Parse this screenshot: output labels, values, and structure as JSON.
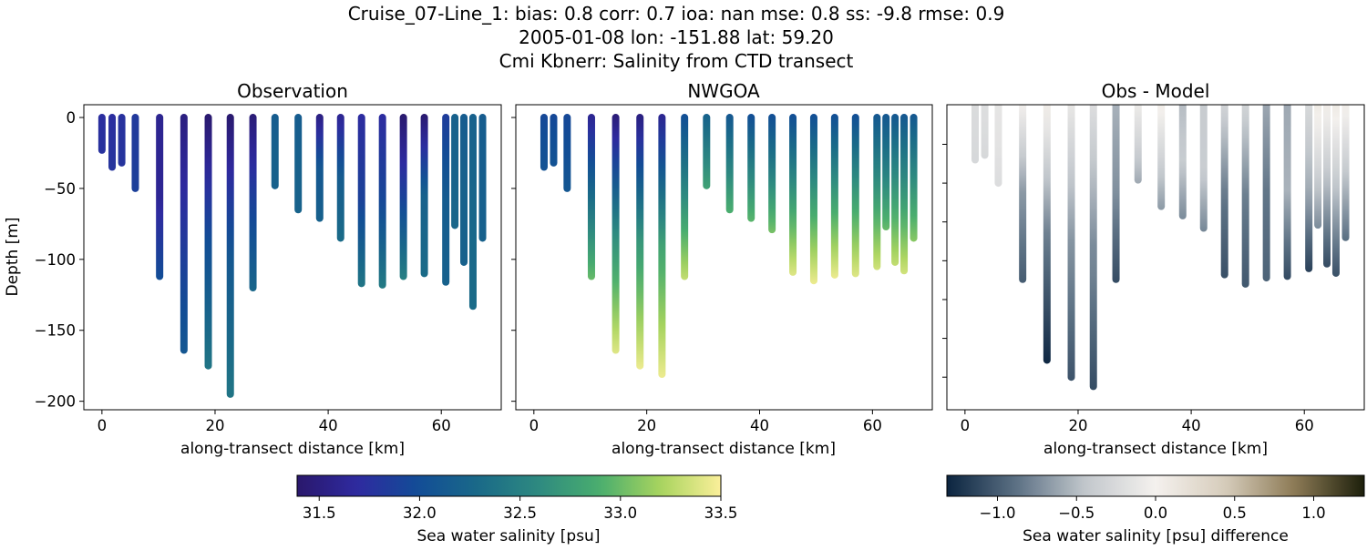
{
  "title_lines": [
    "Cruise_07-Line_1: bias: 0.8  corr: 0.7  ioa: nan  mse: 0.8  ss: -9.8  rmse: 0.9",
    "2005-01-08 lon: -151.88 lat: 59.20",
    "Cmi Kbnerr: Salinity from CTD transect"
  ],
  "chart_data": [
    {
      "type": "scatter",
      "title": "Observation",
      "xlabel": "along-transect distance [km]",
      "ylabel": "Depth [m]",
      "xlim": [
        -3.2,
        70.6
      ],
      "ylim": [
        -206,
        9
      ],
      "xticks": [
        "0",
        "20",
        "40",
        "60"
      ],
      "yticks": [
        "0",
        "−50",
        "−100",
        "−150",
        "−200"
      ],
      "colormap": "haline",
      "profiles": [
        {
          "distance_km": 0.0,
          "max_depth_m": 23,
          "salinity": [
            31.72,
            31.74,
            31.76
          ]
        },
        {
          "distance_km": 1.8,
          "max_depth_m": 35,
          "salinity": [
            31.72,
            31.75,
            31.78
          ]
        },
        {
          "distance_km": 3.5,
          "max_depth_m": 32,
          "salinity": [
            31.75,
            31.77,
            31.78
          ]
        },
        {
          "distance_km": 5.9,
          "max_depth_m": 50,
          "salinity": [
            31.82,
            31.85,
            31.88
          ]
        },
        {
          "distance_km": 10.2,
          "max_depth_m": 112,
          "salinity": [
            31.6,
            31.62,
            32.0
          ]
        },
        {
          "distance_km": 14.5,
          "max_depth_m": 164,
          "salinity": [
            31.5,
            31.8,
            32.1
          ]
        },
        {
          "distance_km": 18.8,
          "max_depth_m": 175,
          "salinity": [
            31.4,
            32.0,
            32.4
          ]
        },
        {
          "distance_km": 22.7,
          "max_depth_m": 195,
          "salinity": [
            31.4,
            32.1,
            32.4
          ]
        },
        {
          "distance_km": 26.7,
          "max_depth_m": 120,
          "salinity": [
            31.45,
            31.9,
            32.25
          ]
        },
        {
          "distance_km": 30.6,
          "max_depth_m": 48,
          "salinity": [
            32.15,
            32.2,
            32.2
          ]
        },
        {
          "distance_km": 34.7,
          "max_depth_m": 65,
          "salinity": [
            32.15,
            32.2,
            32.22
          ]
        },
        {
          "distance_km": 38.5,
          "max_depth_m": 71,
          "salinity": [
            31.5,
            32.1,
            32.2
          ]
        },
        {
          "distance_km": 42.2,
          "max_depth_m": 85,
          "salinity": [
            31.6,
            32.15,
            32.3
          ]
        },
        {
          "distance_km": 45.9,
          "max_depth_m": 117,
          "salinity": [
            31.7,
            31.9,
            32.4
          ]
        },
        {
          "distance_km": 49.6,
          "max_depth_m": 118,
          "salinity": [
            31.7,
            31.95,
            32.45
          ]
        },
        {
          "distance_km": 53.3,
          "max_depth_m": 112,
          "salinity": [
            31.4,
            31.9,
            32.5
          ]
        },
        {
          "distance_km": 57.0,
          "max_depth_m": 110,
          "salinity": [
            31.4,
            32.2,
            32.3
          ]
        },
        {
          "distance_km": 60.8,
          "max_depth_m": 116,
          "salinity": [
            31.85,
            32.15,
            32.2
          ]
        },
        {
          "distance_km": 62.4,
          "max_depth_m": 76,
          "salinity": [
            32.2,
            32.22,
            32.25
          ]
        },
        {
          "distance_km": 64.0,
          "max_depth_m": 102,
          "salinity": [
            32.15,
            32.2,
            32.2
          ]
        },
        {
          "distance_km": 65.6,
          "max_depth_m": 133,
          "salinity": [
            32.2,
            32.25,
            32.3
          ]
        },
        {
          "distance_km": 67.3,
          "max_depth_m": 85,
          "salinity": [
            32.15,
            32.18,
            32.2
          ]
        }
      ]
    },
    {
      "type": "scatter",
      "title": "NWGOA",
      "xlabel": "along-transect distance [km]",
      "xlim": [
        -3.2,
        70.6
      ],
      "ylim": [
        -206,
        9
      ],
      "xticks": [
        "0",
        "20",
        "40",
        "60"
      ],
      "colormap": "haline",
      "profiles": [
        {
          "distance_km": 1.8,
          "max_depth_m": 35,
          "salinity": [
            31.95,
            32.0,
            32.05
          ]
        },
        {
          "distance_km": 3.5,
          "max_depth_m": 32,
          "salinity": [
            31.95,
            32.0,
            32.05
          ]
        },
        {
          "distance_km": 5.9,
          "max_depth_m": 50,
          "salinity": [
            31.95,
            32.0,
            32.1
          ]
        },
        {
          "distance_km": 10.2,
          "max_depth_m": 112,
          "salinity": [
            31.6,
            32.3,
            33.0
          ]
        },
        {
          "distance_km": 14.5,
          "max_depth_m": 164,
          "salinity": [
            31.45,
            32.6,
            33.4
          ]
        },
        {
          "distance_km": 18.8,
          "max_depth_m": 175,
          "salinity": [
            31.5,
            32.7,
            33.45
          ]
        },
        {
          "distance_km": 22.7,
          "max_depth_m": 181,
          "salinity": [
            31.6,
            32.8,
            33.45
          ]
        },
        {
          "distance_km": 26.7,
          "max_depth_m": 112,
          "salinity": [
            32.0,
            32.6,
            33.3
          ]
        },
        {
          "distance_km": 30.6,
          "max_depth_m": 48,
          "salinity": [
            32.2,
            32.5,
            32.8
          ]
        },
        {
          "distance_km": 34.7,
          "max_depth_m": 65,
          "salinity": [
            32.1,
            32.5,
            32.9
          ]
        },
        {
          "distance_km": 38.5,
          "max_depth_m": 71,
          "salinity": [
            32.0,
            32.5,
            32.95
          ]
        },
        {
          "distance_km": 42.2,
          "max_depth_m": 79,
          "salinity": [
            32.0,
            32.5,
            33.05
          ]
        },
        {
          "distance_km": 45.9,
          "max_depth_m": 109,
          "salinity": [
            32.0,
            32.7,
            33.4
          ]
        },
        {
          "distance_km": 49.6,
          "max_depth_m": 115,
          "salinity": [
            32.0,
            32.75,
            33.45
          ]
        },
        {
          "distance_km": 53.3,
          "max_depth_m": 111,
          "salinity": [
            32.0,
            32.75,
            33.45
          ]
        },
        {
          "distance_km": 57.0,
          "max_depth_m": 110,
          "salinity": [
            32.0,
            32.75,
            33.4
          ]
        },
        {
          "distance_km": 60.8,
          "max_depth_m": 105,
          "salinity": [
            32.1,
            32.7,
            33.35
          ]
        },
        {
          "distance_km": 62.4,
          "max_depth_m": 77,
          "salinity": [
            32.1,
            32.5,
            33.0
          ]
        },
        {
          "distance_km": 64.0,
          "max_depth_m": 102,
          "salinity": [
            32.1,
            32.7,
            33.3
          ]
        },
        {
          "distance_km": 65.6,
          "max_depth_m": 108,
          "salinity": [
            32.1,
            32.7,
            33.35
          ]
        },
        {
          "distance_km": 67.3,
          "max_depth_m": 85,
          "salinity": [
            32.1,
            32.6,
            33.1
          ]
        }
      ]
    },
    {
      "type": "scatter",
      "title": "Obs - Model",
      "xlabel": "along-transect distance [km]",
      "xlim": [
        -3.2,
        70.6
      ],
      "ylim": [
        -196,
        0.5
      ],
      "xticks": [
        "0",
        "20",
        "40",
        "60"
      ],
      "colormap": "diff",
      "note_values": "obs minus model salinity along NWGOA profiles"
    }
  ],
  "colorbars": [
    {
      "label": "Sea water salinity [psu]",
      "range": [
        31.39,
        33.5
      ],
      "ticks": [
        "31.5",
        "32.0",
        "32.5",
        "33.0",
        "33.5"
      ],
      "tick_values": [
        31.5,
        32.0,
        32.5,
        33.0,
        33.5
      ]
    },
    {
      "label": "Sea water salinity [psu] difference",
      "range": [
        -1.32,
        1.32
      ],
      "ticks": [
        "−1.0",
        "−0.5",
        "0.0",
        "0.5",
        "1.0"
      ],
      "tick_values": [
        -1.0,
        -0.5,
        0.0,
        0.5,
        1.0
      ]
    }
  ],
  "colors": {
    "haline": [
      "#2a186c",
      "#2e2aa0",
      "#124d96",
      "#1a6a88",
      "#2e8a80",
      "#4aae6e",
      "#a8d45e",
      "#fbef9a"
    ],
    "diff": [
      "#0b2440",
      "#5c7184",
      "#c3c8cd",
      "#f4f1ee",
      "#d6ccbb",
      "#8c7a55",
      "#1c1f0b"
    ]
  }
}
